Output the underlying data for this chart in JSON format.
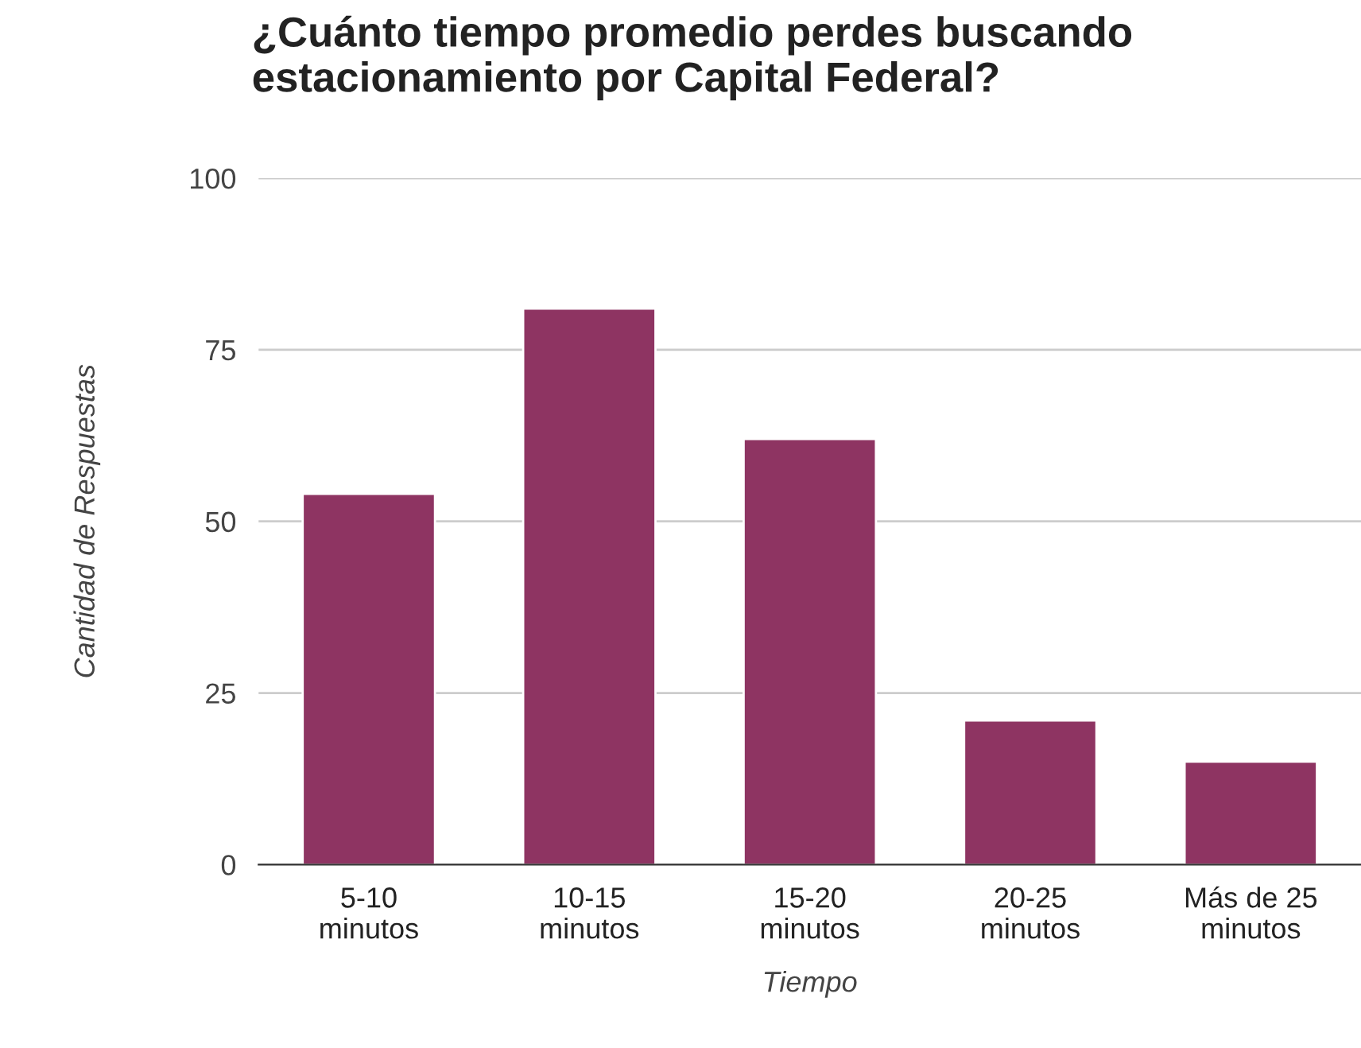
{
  "chart_data": {
    "type": "bar",
    "title": "¿Cuánto tiempo promedio perdes buscando\nestacionamiento por Capital Federal?",
    "xlabel": "Tiempo",
    "ylabel": "Cantidad de Respuestas",
    "categories": [
      "5-10\nminutos",
      "10-15\nminutos",
      "15-20\nminutos",
      "20-25\nminutos",
      "Más de 25\nminutos"
    ],
    "values": [
      54,
      81,
      62,
      21,
      15
    ],
    "color": "#8e3462",
    "ylim": [
      0,
      100
    ],
    "yticks": [
      0,
      25,
      50,
      75,
      100
    ],
    "grid": "y",
    "legend": false
  }
}
